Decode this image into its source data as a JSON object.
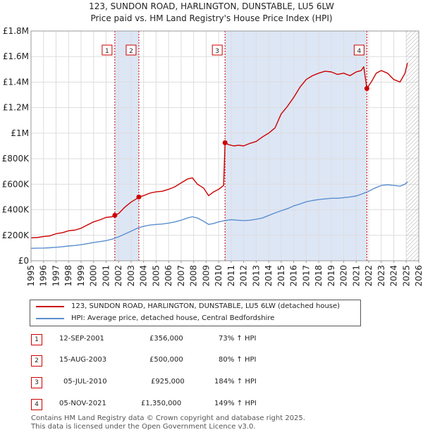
{
  "header": {
    "title": "123, SUNDON ROAD, HARLINGTON, DUNSTABLE, LU5 6LW",
    "subtitle": "Price paid vs. HM Land Registry's House Price Index (HPI)"
  },
  "chart_data": {
    "type": "line",
    "title": "123, SUNDON ROAD, HARLINGTON, DUNSTABLE, LU5 6LW",
    "subtitle": "Price paid vs. HM Land Registry's House Price Index (HPI)",
    "xlabel": "",
    "ylabel": "",
    "xlim": [
      1995,
      2026
    ],
    "ylim": [
      0,
      1800000
    ],
    "x_ticks": [
      1995,
      1996,
      1997,
      1998,
      1999,
      2000,
      2001,
      2002,
      2003,
      2004,
      2005,
      2006,
      2007,
      2008,
      2009,
      2010,
      2011,
      2012,
      2013,
      2014,
      2015,
      2016,
      2017,
      2018,
      2019,
      2020,
      2021,
      2022,
      2023,
      2024,
      2025,
      2026
    ],
    "x_tick_labels": [
      "1995",
      "1996",
      "1997",
      "1998",
      "1999",
      "2000",
      "2001",
      "2002",
      "2003",
      "2004",
      "2005",
      "2006",
      "2007",
      "2008",
      "2009",
      "2010",
      "2011",
      "2012",
      "2013",
      "2014",
      "2015",
      "2016",
      "2017",
      "2018",
      "2019",
      "2020",
      "2021",
      "2022",
      "2023",
      "2024",
      "2025",
      "2026"
    ],
    "y_ticks": [
      0,
      200000,
      400000,
      600000,
      800000,
      1000000,
      1200000,
      1400000,
      1600000,
      1800000
    ],
    "y_tick_labels": [
      "£0",
      "£200K",
      "£400K",
      "£600K",
      "£800K",
      "£1M",
      "£1.2M",
      "£1.4M",
      "£1.6M",
      "£1.8M"
    ],
    "grid": true,
    "future_hatch_from": 2025.0,
    "colors": {
      "property": "#cc0000",
      "hpi": "#5b8fcf",
      "shade": "#dde6f5",
      "grid": "#dddddd"
    },
    "shaded_periods": [
      [
        2001.7,
        2003.62
      ],
      [
        2010.51,
        2021.85
      ]
    ],
    "series": [
      {
        "name": "123, SUNDON ROAD, HARLINGTON, DUNSTABLE, LU5 6LW (detached house)",
        "color": "#cc0000",
        "x": [
          1995.0,
          1995.5,
          1996.0,
          1996.5,
          1997.0,
          1997.5,
          1998.0,
          1998.5,
          1999.0,
          1999.5,
          2000.0,
          2000.5,
          2001.0,
          2001.5,
          2001.7,
          2002.0,
          2002.5,
          2003.0,
          2003.5,
          2003.62,
          2004.0,
          2004.5,
          2005.0,
          2005.5,
          2006.0,
          2006.5,
          2007.0,
          2007.5,
          2007.9,
          2008.3,
          2008.8,
          2009.2,
          2009.6,
          2010.0,
          2010.4,
          2010.51,
          2010.8,
          2011.2,
          2011.6,
          2012.0,
          2012.5,
          2013.0,
          2013.5,
          2014.0,
          2014.5,
          2015.0,
          2015.5,
          2016.0,
          2016.5,
          2017.0,
          2017.5,
          2018.0,
          2018.5,
          2019.0,
          2019.5,
          2020.0,
          2020.5,
          2021.0,
          2021.4,
          2021.6,
          2021.85,
          2022.2,
          2022.6,
          2023.0,
          2023.5,
          2024.0,
          2024.5,
          2024.9,
          2025.1
        ],
        "values": [
          180000,
          182000,
          190000,
          195000,
          212000,
          220000,
          235000,
          240000,
          255000,
          280000,
          305000,
          320000,
          340000,
          345000,
          356000,
          370000,
          420000,
          460000,
          490000,
          500000,
          510000,
          530000,
          540000,
          545000,
          560000,
          580000,
          610000,
          640000,
          650000,
          600000,
          570000,
          510000,
          540000,
          560000,
          590000,
          925000,
          910000,
          900000,
          905000,
          900000,
          920000,
          935000,
          970000,
          1000000,
          1040000,
          1150000,
          1210000,
          1280000,
          1360000,
          1420000,
          1450000,
          1470000,
          1485000,
          1480000,
          1460000,
          1470000,
          1450000,
          1480000,
          1490000,
          1520000,
          1350000,
          1400000,
          1470000,
          1490000,
          1470000,
          1420000,
          1400000,
          1470000,
          1550000
        ]
      },
      {
        "name": "HPI: Average price, detached house, Central Bedfordshire",
        "color": "#5b8fcf",
        "x": [
          1995.0,
          1995.5,
          1996.0,
          1996.5,
          1997.0,
          1997.5,
          1998.0,
          1998.5,
          1999.0,
          1999.5,
          2000.0,
          2000.5,
          2001.0,
          2001.5,
          2002.0,
          2002.5,
          2003.0,
          2003.5,
          2004.0,
          2004.5,
          2005.0,
          2005.5,
          2006.0,
          2006.5,
          2007.0,
          2007.5,
          2007.9,
          2008.3,
          2008.8,
          2009.2,
          2009.6,
          2010.0,
          2010.5,
          2011.0,
          2011.5,
          2012.0,
          2012.5,
          2013.0,
          2013.5,
          2014.0,
          2014.5,
          2015.0,
          2015.5,
          2016.0,
          2016.5,
          2017.0,
          2017.5,
          2018.0,
          2018.5,
          2019.0,
          2019.5,
          2020.0,
          2020.5,
          2021.0,
          2021.5,
          2022.0,
          2022.5,
          2023.0,
          2023.5,
          2024.0,
          2024.5,
          2024.9,
          2025.1
        ],
        "values": [
          98000,
          99000,
          100000,
          102000,
          106000,
          110000,
          116000,
          120000,
          126000,
          134000,
          143000,
          150000,
          158000,
          170000,
          188000,
          210000,
          232000,
          255000,
          270000,
          280000,
          285000,
          288000,
          295000,
          305000,
          318000,
          335000,
          345000,
          335000,
          310000,
          285000,
          292000,
          305000,
          315000,
          322000,
          318000,
          315000,
          318000,
          325000,
          335000,
          355000,
          375000,
          392000,
          408000,
          430000,
          445000,
          462000,
          472000,
          480000,
          485000,
          490000,
          490000,
          495000,
          500000,
          508000,
          525000,
          545000,
          570000,
          590000,
          595000,
          590000,
          585000,
          600000,
          620000
        ]
      }
    ],
    "markers": [
      {
        "id": "1",
        "x": 2001.7,
        "value": 356000
      },
      {
        "id": "2",
        "x": 2003.62,
        "value": 500000
      },
      {
        "id": "3",
        "x": 2010.51,
        "value": 925000
      },
      {
        "id": "4",
        "x": 2021.85,
        "value": 1350000
      }
    ]
  },
  "legend": {
    "items": [
      {
        "label": "123, SUNDON ROAD, HARLINGTON, DUNSTABLE, LU5 6LW (detached house)",
        "color": "#cc0000"
      },
      {
        "label": "HPI: Average price, detached house, Central Bedfordshire",
        "color": "#5b8fcf"
      }
    ]
  },
  "transactions": [
    {
      "num": "1",
      "date": "12-SEP-2001",
      "price": "£356,000",
      "hpi": "73% ↑ HPI"
    },
    {
      "num": "2",
      "date": "15-AUG-2003",
      "price": "£500,000",
      "hpi": "80% ↑ HPI"
    },
    {
      "num": "3",
      "date": "05-JUL-2010",
      "price": "£925,000",
      "hpi": "184% ↑ HPI"
    },
    {
      "num": "4",
      "date": "05-NOV-2021",
      "price": "£1,350,000",
      "hpi": "149% ↑ HPI"
    }
  ],
  "footer": {
    "line1": "Contains HM Land Registry data © Crown copyright and database right 2025.",
    "line2": "This data is licensed under the Open Government Licence v3.0."
  }
}
